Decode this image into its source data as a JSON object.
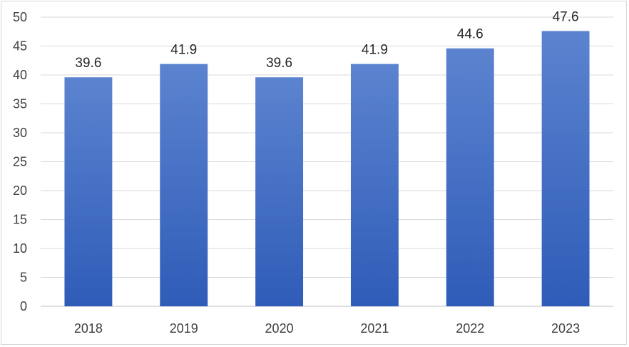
{
  "chart_data": {
    "type": "bar",
    "categories": [
      "2018",
      "2019",
      "2020",
      "2021",
      "2022",
      "2023"
    ],
    "values": [
      39.6,
      41.9,
      39.6,
      41.9,
      44.6,
      47.6
    ],
    "data_labels": [
      "39.6",
      "41.9",
      "39.6",
      "41.9",
      "44.6",
      "47.6"
    ],
    "title": "",
    "xlabel": "",
    "ylabel": "",
    "ylim": [
      0,
      50
    ],
    "yticks": [
      "0",
      "5",
      "10",
      "15",
      "20",
      "25",
      "30",
      "35",
      "40",
      "45",
      "50"
    ],
    "grid": "horizontal",
    "legend": "none",
    "colors": {
      "bar_top": "#5b83cf",
      "bar_bottom": "#2f5cb8",
      "gridline": "#d9d9d9",
      "axis": "#bfbfbf"
    }
  }
}
